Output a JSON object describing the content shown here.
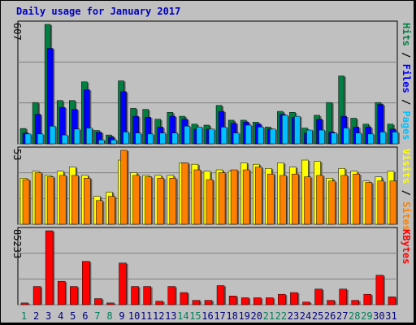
{
  "title": "Daily usage for January 2017",
  "colors": {
    "hits": "#008040",
    "files": "#0000ff",
    "pages": "#00c0ff",
    "visits": "#ffff00",
    "sites": "#ff8000",
    "kbytes": "#ff0000",
    "weekend": "#00805c",
    "weekday": "#000080",
    "separator": "#000000"
  },
  "chart_data": [
    {
      "type": "bar",
      "ylabel_parts": [
        "Pages",
        "Files",
        "Hits"
      ],
      "ymax_label": "607",
      "ylim": [
        0,
        607
      ],
      "categories": [
        "1",
        "2",
        "3",
        "4",
        "5",
        "6",
        "7",
        "8",
        "9",
        "10",
        "11",
        "12",
        "13",
        "14",
        "15",
        "16",
        "17",
        "18",
        "19",
        "20",
        "21",
        "22",
        "23",
        "24",
        "25",
        "26",
        "27",
        "28",
        "29",
        "30",
        "31"
      ],
      "series": [
        {
          "name": "Hits",
          "values": [
            78,
            210,
            607,
            220,
            220,
            315,
            68,
            45,
            320,
            180,
            175,
            125,
            160,
            140,
            100,
            95,
            195,
            120,
            120,
            110,
            85,
            165,
            160,
            80,
            145,
            210,
            345,
            130,
            100,
            210,
            100
          ]
        },
        {
          "name": "Files",
          "values": [
            55,
            150,
            485,
            185,
            175,
            275,
            58,
            35,
            265,
            140,
            135,
            85,
            140,
            125,
            75,
            75,
            165,
            105,
            110,
            100,
            75,
            150,
            135,
            55,
            125,
            60,
            140,
            85,
            85,
            200,
            75
          ]
        },
        {
          "name": "Pages",
          "values": [
            50,
            50,
            90,
            45,
            75,
            80,
            20,
            20,
            60,
            55,
            50,
            55,
            55,
            90,
            85,
            75,
            85,
            55,
            95,
            85,
            75,
            145,
            140,
            70,
            70,
            55,
            80,
            55,
            50,
            60,
            60
          ]
        }
      ]
    },
    {
      "type": "bar",
      "ylabel_parts": [
        "Sites",
        "Visits"
      ],
      "ymax_label": "53",
      "ylim": [
        0,
        53
      ],
      "categories": [
        "1",
        "2",
        "3",
        "4",
        "5",
        "6",
        "7",
        "8",
        "9",
        "10",
        "11",
        "12",
        "13",
        "14",
        "15",
        "16",
        "17",
        "18",
        "19",
        "20",
        "21",
        "22",
        "23",
        "24",
        "25",
        "26",
        "27",
        "28",
        "29",
        "30",
        "31"
      ],
      "series": [
        {
          "name": "Visits",
          "values": [
            33,
            38,
            35,
            38,
            41,
            35,
            20,
            23,
            46,
            37,
            35,
            35,
            35,
            44,
            43,
            38,
            39,
            38,
            44,
            43,
            40,
            44,
            41,
            46,
            45,
            33,
            40,
            38,
            31,
            34,
            38
          ]
        },
        {
          "name": "Sites",
          "values": [
            32,
            37,
            34,
            35,
            35,
            33,
            17,
            20,
            53,
            35,
            34,
            33,
            33,
            44,
            39,
            32,
            37,
            39,
            39,
            41,
            36,
            35,
            36,
            34,
            35,
            31,
            35,
            36,
            30,
            31,
            31
          ]
        }
      ]
    },
    {
      "type": "bar",
      "ylabel_parts": [
        "KBytes"
      ],
      "ymax_label": "85233",
      "ylim": [
        0,
        85233
      ],
      "categories": [
        "1",
        "2",
        "3",
        "4",
        "5",
        "6",
        "7",
        "8",
        "9",
        "10",
        "11",
        "12",
        "13",
        "14",
        "15",
        "16",
        "17",
        "18",
        "19",
        "20",
        "21",
        "22",
        "23",
        "24",
        "25",
        "26",
        "27",
        "28",
        "29",
        "30",
        "31"
      ],
      "series": [
        {
          "name": "KBytes",
          "values": [
            2000,
            21000,
            85233,
            27000,
            21000,
            50000,
            7000,
            2000,
            48000,
            21000,
            21000,
            4000,
            21000,
            14000,
            5000,
            5000,
            22000,
            10000,
            8000,
            8000,
            8000,
            12000,
            14000,
            3000,
            18000,
            5000,
            18000,
            5000,
            12000,
            34000,
            9000
          ]
        }
      ]
    }
  ]
}
